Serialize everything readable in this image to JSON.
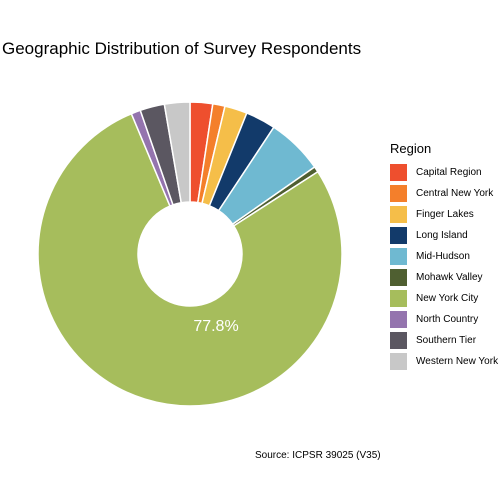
{
  "chart_data": {
    "type": "pie",
    "title": "Geographic Distribution of Survey Respondents",
    "legend_title": "Region",
    "legend_position": "right",
    "caption": "Source: ICPSR 39025 (V35)",
    "center_label": "77.8%",
    "slices": [
      {
        "label": "Capital Region",
        "value": 2.4,
        "color": "#ee4f2e"
      },
      {
        "label": "Central New York",
        "value": 1.3,
        "color": "#f47f2b"
      },
      {
        "label": "Finger Lakes",
        "value": 2.4,
        "color": "#f5be49"
      },
      {
        "label": "Long Island",
        "value": 3.2,
        "color": "#123a6a"
      },
      {
        "label": "Mid-Hudson",
        "value": 6.0,
        "color": "#6fb9d1"
      },
      {
        "label": "Mohawk Valley",
        "value": 0.6,
        "color": "#4f5f31"
      },
      {
        "label": "New York City",
        "value": 77.8,
        "color": "#a6bd5c"
      },
      {
        "label": "North Country",
        "value": 1.0,
        "color": "#9474ae"
      },
      {
        "label": "Southern Tier",
        "value": 2.6,
        "color": "#5b5761"
      },
      {
        "label": "Western New York",
        "value": 2.7,
        "color": "#c8c8c8"
      }
    ]
  }
}
